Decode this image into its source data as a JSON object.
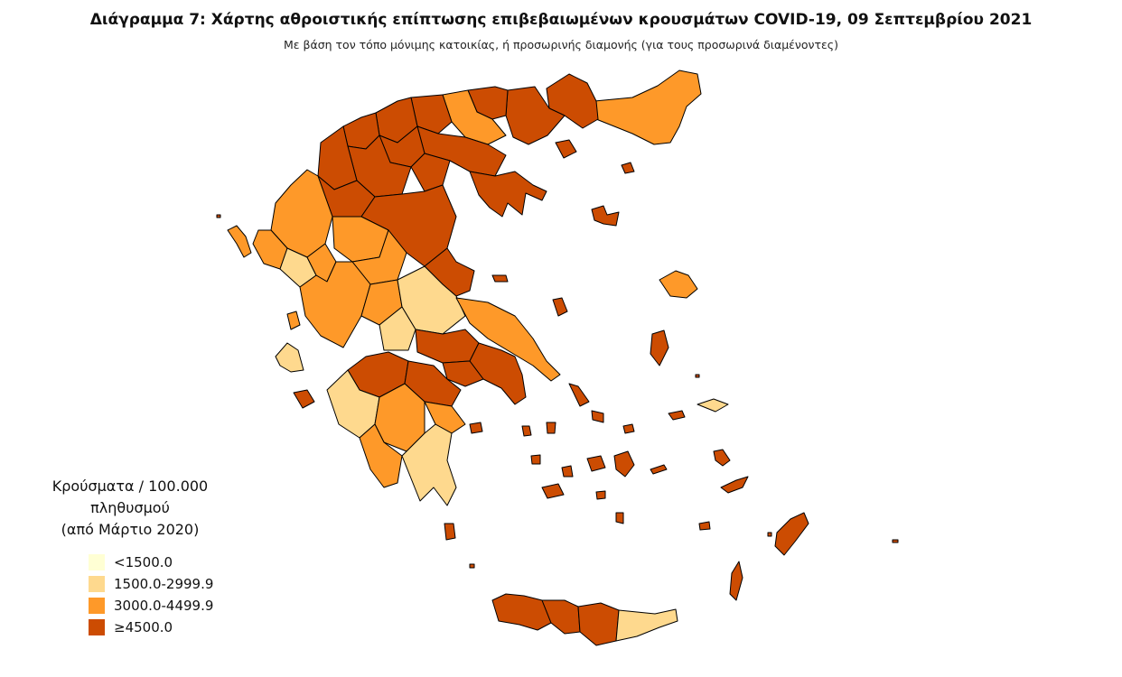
{
  "title": "Διάγραμμα 7: Χάρτης αθροιστικής επίπτωσης επιβεβαιωμένων κρουσμάτων COVID-19, 09 Σεπτεμβρίου 2021",
  "subtitle": "Με βάση τον τόπο μόνιμης κατοικίας, ή προσωρινής διαμονής (για τους προσωρινά διαμένοντες)",
  "legend": {
    "title_line1": "Κρούσματα / 100.000 πληθυσμού",
    "title_line2": "(από Μάρτιο 2020)",
    "items": [
      {
        "label": "<1500.0",
        "color": "#FFFFD4"
      },
      {
        "label": "1500.0-2999.9",
        "color": "#FED98E"
      },
      {
        "label": "3000.0-4499.9",
        "color": "#FE9929"
      },
      {
        "label": "≥4500.0",
        "color": "#CC4C02"
      }
    ]
  },
  "colors": {
    "low": "#FFFFD4",
    "light": "#FED98E",
    "mid": "#FE9929",
    "high": "#CC4C02",
    "border": "#000000"
  }
}
